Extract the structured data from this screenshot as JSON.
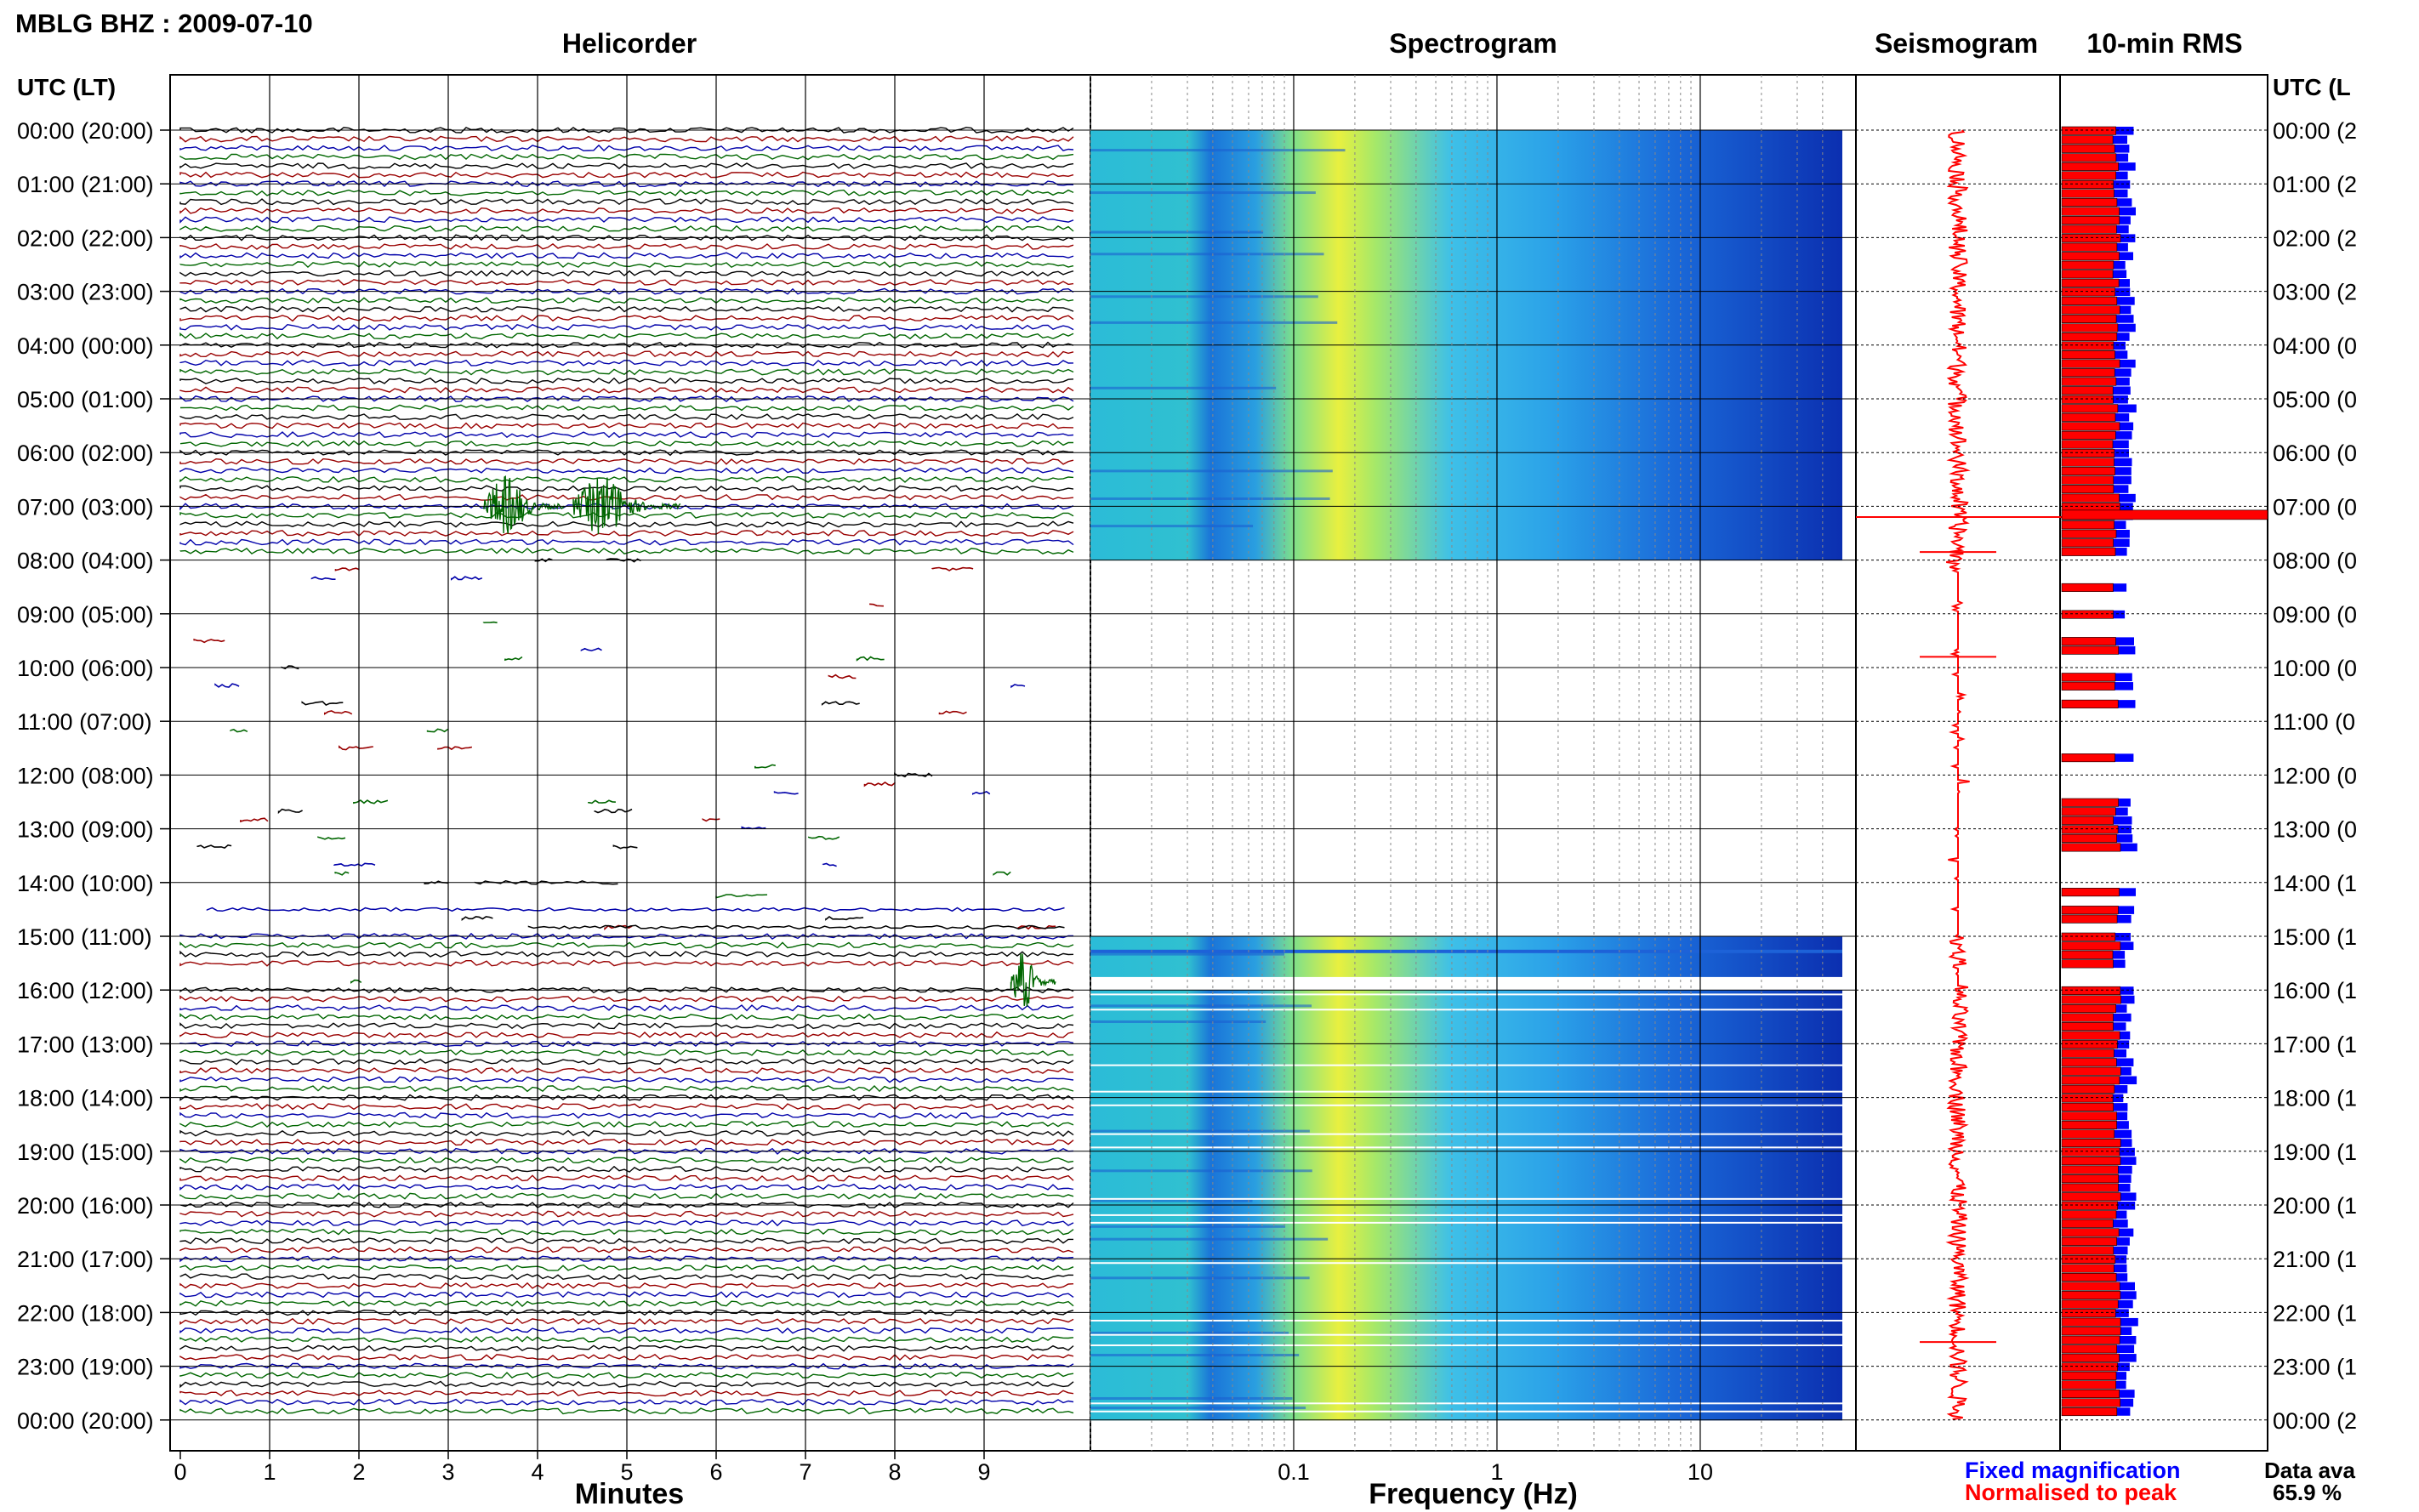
{
  "header": {
    "station_title": "MBLG BHZ : 2009-07-10",
    "panels": {
      "helicorder": "Helicorder",
      "spectrogram": "Spectrogram",
      "seismogram": "Seismogram",
      "rms": "10-min RMS"
    },
    "time_axis_title_left": "UTC (LT)",
    "time_axis_title_right": "UTC (L"
  },
  "chart_data": {
    "type": "helicorder",
    "time_labels_left": [
      "00:00 (20:00)",
      "01:00 (21:00)",
      "02:00 (22:00)",
      "03:00 (23:00)",
      "04:00 (00:00)",
      "05:00 (01:00)",
      "06:00 (02:00)",
      "07:00 (03:00)",
      "08:00 (04:00)",
      "09:00 (05:00)",
      "10:00 (06:00)",
      "11:00 (07:00)",
      "12:00 (08:00)",
      "13:00 (09:00)",
      "14:00 (10:00)",
      "15:00 (11:00)",
      "16:00 (12:00)",
      "17:00 (13:00)",
      "18:00 (14:00)",
      "19:00 (15:00)",
      "20:00 (16:00)",
      "21:00 (17:00)",
      "22:00 (18:00)",
      "23:00 (19:00)",
      "00:00 (20:00)"
    ],
    "time_labels_right": [
      "00:00 (2",
      "01:00 (2",
      "02:00 (2",
      "03:00 (2",
      "04:00 (0",
      "05:00 (0",
      "06:00 (0",
      "07:00 (0",
      "08:00 (0",
      "09:00 (0",
      "10:00 (0",
      "11:00 (0",
      "12:00 (0",
      "13:00 (0",
      "14:00 (1",
      "15:00 (1",
      "16:00 (1",
      "17:00 (1",
      "18:00 (1",
      "19:00 (1",
      "20:00 (1",
      "21:00 (1",
      "22:00 (1",
      "23:00 (1",
      "00:00 (2"
    ],
    "helicorder": {
      "xlabel": "Minutes",
      "x_ticks": [
        "0",
        "1",
        "2",
        "3",
        "4",
        "5",
        "6",
        "7",
        "8",
        "9"
      ],
      "xlim": [
        0,
        10
      ],
      "trace_colors": [
        "#000000",
        "#990000",
        "#0000aa",
        "#006600"
      ],
      "data_gaps_hours": [
        [
          8,
          15
        ],
        [
          15.6,
          15.95
        ]
      ],
      "events": [
        {
          "hour": 7.0,
          "minute_start": 3.4,
          "minute_end": 4.3
        },
        {
          "hour": 7.0,
          "minute_start": 4.4,
          "minute_end": 5.6
        },
        {
          "hour": 15.85,
          "minute_start": 9.3,
          "minute_end": 9.8
        }
      ]
    },
    "spectrogram": {
      "xlabel": "Frequency (Hz)",
      "x_ticks": [
        "0.1",
        "1",
        "10"
      ],
      "xscale": "log",
      "xlim": [
        0.01,
        50
      ],
      "colormap": "jet"
    },
    "seismogram": {
      "trace_color": "#ff0000",
      "spikes_hours": [
        7.2,
        7.85,
        9.8,
        22.55
      ]
    },
    "rms": {
      "units": "10-min",
      "fixed_label": "Fixed magnification",
      "normalised_label": "Normalised to peak",
      "fixed_color": "#0000ff",
      "normalised_color": "#ff0000",
      "peak_hour": 7.15
    },
    "availability": {
      "label": "Data ava",
      "value": "65.9 %"
    }
  }
}
